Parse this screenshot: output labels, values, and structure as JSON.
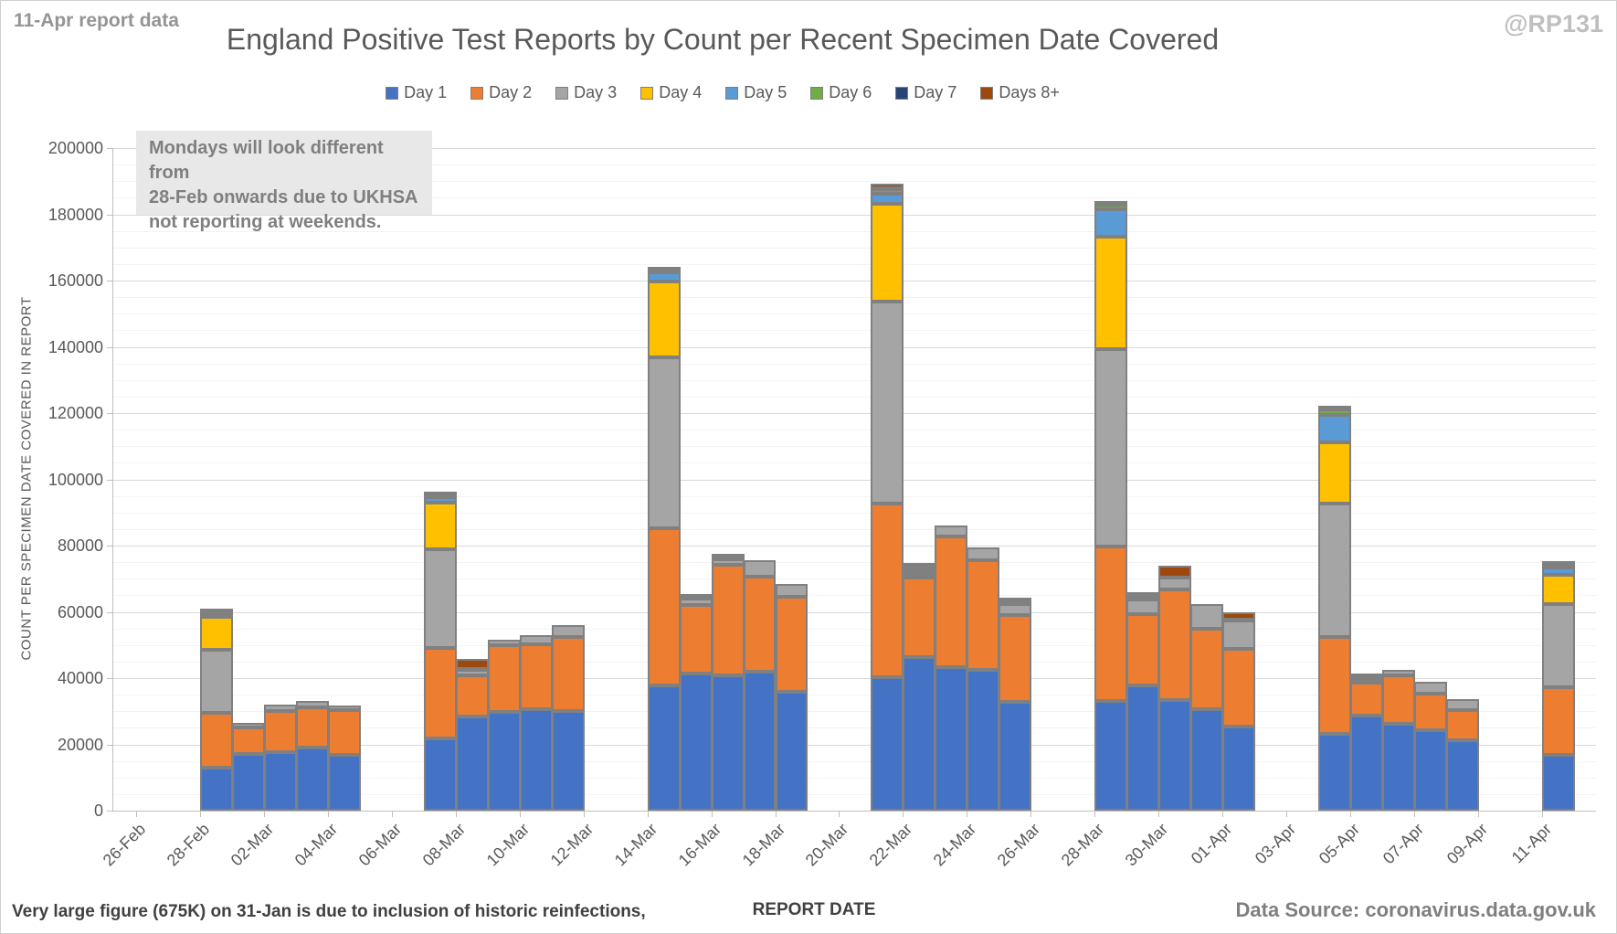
{
  "header": {
    "report_note": "11-Apr report data",
    "title": "England Positive Test Reports by Count per Recent Specimen Date Covered",
    "watermark": "@RP131"
  },
  "annotation": {
    "lines": [
      "Mondays will look different from",
      "28-Feb onwards due to UKHSA",
      "not reporting at weekends."
    ]
  },
  "footer": {
    "note": "Very large figure (675K) on 31-Jan is due to inclusion of historic reinfections,",
    "x_axis_title": "REPORT DATE",
    "source": "Data Source: coronavirus.data.gov.uk"
  },
  "chart_data": {
    "type": "bar",
    "stacked": true,
    "title": "England Positive Test Reports by Count per Recent Specimen Date Covered",
    "xlabel": "REPORT DATE",
    "ylabel": "COUNT PER SPECIMEN DATE COVERED IN REPORT",
    "ylim": [
      0,
      200000
    ],
    "ytick_step": 20000,
    "ytick_minor_step": 5000,
    "grid": "horizontal",
    "legend_position": "top",
    "x_tick_labels": [
      "26-Feb",
      "28-Feb",
      "02-Mar",
      "04-Mar",
      "06-Mar",
      "08-Mar",
      "10-Mar",
      "12-Mar",
      "14-Mar",
      "16-Mar",
      "18-Mar",
      "20-Mar",
      "22-Mar",
      "24-Mar",
      "26-Mar",
      "28-Mar",
      "30-Mar",
      "01-Apr",
      "03-Apr",
      "05-Apr",
      "07-Apr",
      "09-Apr",
      "11-Apr"
    ],
    "x_tick_day_offsets": [
      0,
      2,
      4,
      6,
      8,
      10,
      12,
      14,
      16,
      18,
      20,
      22,
      24,
      26,
      28,
      30,
      32,
      34,
      36,
      38,
      40,
      42,
      44
    ],
    "categories": [
      "28-Feb",
      "01-Mar",
      "02-Mar",
      "03-Mar",
      "04-Mar",
      "07-Mar",
      "08-Mar",
      "09-Mar",
      "10-Mar",
      "11-Mar",
      "14-Mar",
      "15-Mar",
      "16-Mar",
      "17-Mar",
      "18-Mar",
      "21-Mar",
      "22-Mar",
      "23-Mar",
      "24-Mar",
      "25-Mar",
      "28-Mar",
      "29-Mar",
      "30-Mar",
      "31-Mar",
      "01-Apr",
      "04-Apr",
      "05-Apr",
      "06-Apr",
      "07-Apr",
      "08-Apr",
      "11-Apr"
    ],
    "category_day_offsets": [
      2,
      3,
      4,
      5,
      6,
      9,
      10,
      11,
      12,
      13,
      16,
      17,
      18,
      19,
      20,
      23,
      24,
      25,
      26,
      27,
      30,
      31,
      32,
      33,
      34,
      37,
      38,
      39,
      40,
      41,
      44
    ],
    "series": [
      {
        "name": "Day 1",
        "color": "#4472C4",
        "values": [
          13000,
          17000,
          17700,
          19100,
          16800,
          21700,
          28300,
          29700,
          30600,
          30000,
          37800,
          41500,
          40800,
          42000,
          36000,
          40300,
          46300,
          43350,
          42400,
          32900,
          33100,
          37800,
          33500,
          30500,
          25300,
          23200,
          28700,
          26200,
          24400,
          21200,
          16800
        ]
      },
      {
        "name": "Day 2",
        "color": "#ED7D31",
        "values": [
          16500,
          8200,
          12400,
          12200,
          13500,
          27300,
          12500,
          20100,
          19500,
          22300,
          47400,
          20500,
          33300,
          28700,
          28500,
          52500,
          23950,
          39550,
          33100,
          26100,
          46600,
          21600,
          33200,
          24500,
          23500,
          29350,
          10000,
          14550,
          11000,
          9200,
          20450
        ]
      },
      {
        "name": "Day 3",
        "color": "#A5A5A5",
        "values": [
          19000,
          1300,
          1900,
          1700,
          1500,
          30000,
          1700,
          1900,
          2900,
          3700,
          51700,
          2000,
          1900,
          4800,
          3900,
          60900,
          1200,
          3100,
          4000,
          3300,
          59500,
          4300,
          3700,
          7300,
          8500,
          40050,
          1100,
          1750,
          3600,
          3300,
          25150
        ]
      },
      {
        "name": "Day 4",
        "color": "#FFC000",
        "values": [
          10000,
          0,
          0,
          0,
          0,
          14000,
          400,
          0,
          0,
          0,
          22900,
          300,
          300,
          0,
          0,
          29500,
          1100,
          0,
          0,
          500,
          34100,
          700,
          0,
          0,
          400,
          18700,
          500,
          0,
          0,
          0,
          8900
        ]
      },
      {
        "name": "Day 5",
        "color": "#5B9BD5",
        "values": [
          1000,
          0,
          0,
          0,
          0,
          1500,
          0,
          0,
          0,
          0,
          2800,
          200,
          200,
          0,
          0,
          3100,
          900,
          0,
          0,
          300,
          8200,
          300,
          0,
          0,
          0,
          8200,
          300,
          0,
          0,
          0,
          2200
        ]
      },
      {
        "name": "Day 6",
        "color": "#70AD47",
        "values": [
          200,
          0,
          0,
          0,
          0,
          300,
          0,
          0,
          0,
          0,
          200,
          0,
          0,
          0,
          0,
          1400,
          150,
          0,
          0,
          0,
          1300,
          0,
          0,
          0,
          0,
          1500,
          0,
          0,
          0,
          0,
          200
        ]
      },
      {
        "name": "Day 7",
        "color": "#264478",
        "values": [
          300,
          0,
          0,
          0,
          0,
          300,
          0,
          0,
          0,
          0,
          200,
          0,
          0,
          0,
          0,
          300,
          100,
          0,
          0,
          0,
          200,
          0,
          0,
          0,
          0,
          200,
          0,
          0,
          0,
          0,
          600
        ]
      },
      {
        "name": "Days 8+",
        "color": "#9E480E",
        "values": [
          300,
          0,
          0,
          0,
          0,
          200,
          3000,
          0,
          0,
          0,
          800,
          0,
          0,
          0,
          0,
          1300,
          500,
          0,
          0,
          400,
          300,
          300,
          3600,
          0,
          2300,
          300,
          0,
          0,
          0,
          0,
          400
        ]
      }
    ]
  }
}
